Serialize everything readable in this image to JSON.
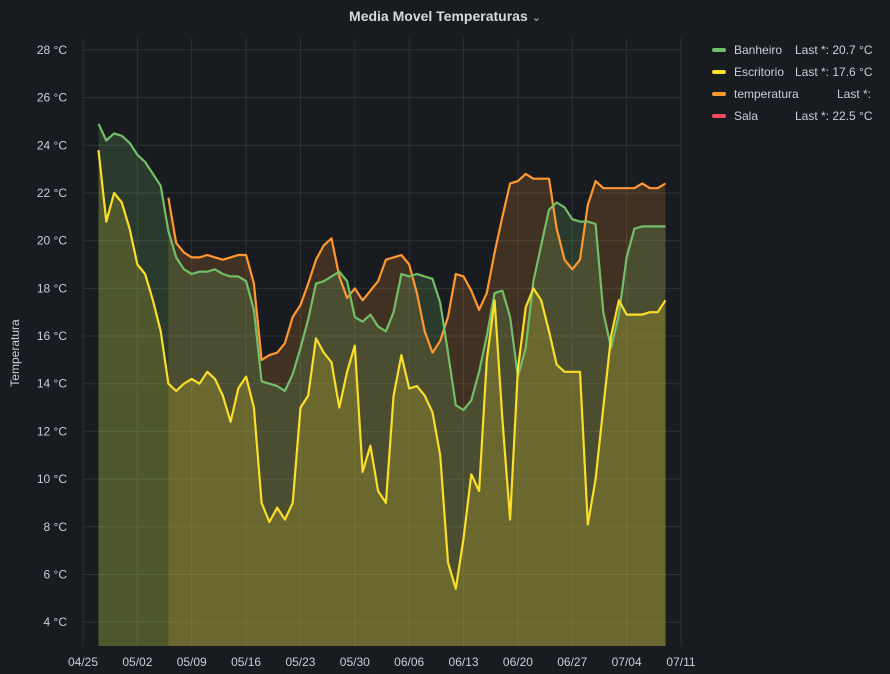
{
  "panel": {
    "title": "Media Movel Temperaturas",
    "chevron": "⌄"
  },
  "legend": [
    {
      "name": "Banheiro",
      "last": "Last *: 20.7 °C",
      "color": "#73bf69"
    },
    {
      "name": "Escritorio",
      "last": "Last *: 17.6 °C",
      "color": "#fade2a"
    },
    {
      "name": "temperatura",
      "last": "Last *:",
      "color": "#ff9830"
    },
    {
      "name": "Sala",
      "last": "Last *: 22.5 °C",
      "color": "#f2495c"
    }
  ],
  "colors": {
    "background": "#181b1f",
    "grid": "#2c3235",
    "text": "#ccccdc"
  },
  "chart_data": {
    "type": "area",
    "title": "Media Movel Temperaturas",
    "ylabel": "Temperatura",
    "xlabel": "",
    "unit": "°C",
    "ylim": [
      3,
      28.5
    ],
    "yticks": [
      4,
      6,
      8,
      10,
      12,
      14,
      16,
      18,
      20,
      22,
      24,
      26,
      28
    ],
    "ytick_labels": [
      "4 °C",
      "6 °C",
      "8 °C",
      "10 °C",
      "12 °C",
      "14 °C",
      "16 °C",
      "18 °C",
      "20 °C",
      "22 °C",
      "24 °C",
      "26 °C",
      "28 °C"
    ],
    "xlim": [
      "2023-04-25",
      "2023-07-11"
    ],
    "xtick_dates": [
      "2023-04-25",
      "2023-05-02",
      "2023-05-09",
      "2023-05-16",
      "2023-05-23",
      "2023-05-30",
      "2023-06-06",
      "2023-06-13",
      "2023-06-20",
      "2023-06-27",
      "2023-07-04",
      "2023-07-11"
    ],
    "xtick_labels": [
      "04/25",
      "05/02",
      "05/09",
      "05/16",
      "05/23",
      "05/30",
      "06/06",
      "06/13",
      "06/20",
      "06/27",
      "07/04",
      "07/11"
    ],
    "grid": true,
    "legend_position": "top-right",
    "series": [
      {
        "name": "Banheiro",
        "color": "#73bf69",
        "x": [
          "2023-04-27",
          "2023-04-28",
          "2023-04-29",
          "2023-04-30",
          "2023-05-01",
          "2023-05-02",
          "2023-05-03",
          "2023-05-04",
          "2023-05-05",
          "2023-05-06",
          "2023-05-07",
          "2023-05-08",
          "2023-05-09",
          "2023-05-10",
          "2023-05-11",
          "2023-05-12",
          "2023-05-13",
          "2023-05-14",
          "2023-05-15",
          "2023-05-16",
          "2023-05-17",
          "2023-05-18",
          "2023-05-19",
          "2023-05-20",
          "2023-05-21",
          "2023-05-22",
          "2023-05-23",
          "2023-05-24",
          "2023-05-25",
          "2023-05-26",
          "2023-05-27",
          "2023-05-28",
          "2023-05-29",
          "2023-05-30",
          "2023-05-31",
          "2023-06-01",
          "2023-06-02",
          "2023-06-03",
          "2023-06-04",
          "2023-06-05",
          "2023-06-06",
          "2023-06-07",
          "2023-06-08",
          "2023-06-09",
          "2023-06-10",
          "2023-06-11",
          "2023-06-12",
          "2023-06-13",
          "2023-06-14",
          "2023-06-15",
          "2023-06-16",
          "2023-06-17",
          "2023-06-18",
          "2023-06-19",
          "2023-06-20",
          "2023-06-21",
          "2023-06-22",
          "2023-06-23",
          "2023-06-24",
          "2023-06-25",
          "2023-06-26",
          "2023-06-27",
          "2023-06-28",
          "2023-06-29",
          "2023-06-30",
          "2023-07-01",
          "2023-07-02",
          "2023-07-03",
          "2023-07-04",
          "2023-07-05",
          "2023-07-06",
          "2023-07-07",
          "2023-07-08",
          "2023-07-09"
        ],
        "values": [
          24.9,
          24.2,
          24.5,
          24.4,
          24.1,
          23.6,
          23.3,
          22.8,
          22.3,
          20.4,
          19.3,
          18.8,
          18.6,
          18.7,
          18.7,
          18.8,
          18.6,
          18.5,
          18.5,
          18.3,
          17.1,
          14.1,
          14.0,
          13.9,
          13.7,
          14.4,
          15.5,
          16.7,
          18.2,
          18.3,
          18.5,
          18.7,
          18.3,
          16.8,
          16.6,
          16.9,
          16.4,
          16.2,
          17.0,
          18.6,
          18.5,
          18.6,
          18.5,
          18.4,
          17.4,
          15.3,
          13.1,
          12.9,
          13.3,
          14.5,
          16.0,
          17.8,
          17.9,
          16.8,
          14.3,
          15.5,
          18.3,
          19.8,
          21.3,
          21.6,
          21.4,
          20.9,
          20.8,
          20.8,
          20.7,
          17.0,
          15.5,
          16.9,
          19.3,
          20.5,
          20.6,
          20.6,
          20.6,
          20.6
        ]
      },
      {
        "name": "Escritorio",
        "color": "#fade2a",
        "x": [
          "2023-04-27",
          "2023-04-28",
          "2023-04-29",
          "2023-04-30",
          "2023-05-01",
          "2023-05-02",
          "2023-05-03",
          "2023-05-04",
          "2023-05-05",
          "2023-05-06",
          "2023-05-07",
          "2023-05-08",
          "2023-05-09",
          "2023-05-10",
          "2023-05-11",
          "2023-05-12",
          "2023-05-13",
          "2023-05-14",
          "2023-05-15",
          "2023-05-16",
          "2023-05-17",
          "2023-05-18",
          "2023-05-19",
          "2023-05-20",
          "2023-05-21",
          "2023-05-22",
          "2023-05-23",
          "2023-05-24",
          "2023-05-25",
          "2023-05-26",
          "2023-05-27",
          "2023-05-28",
          "2023-05-29",
          "2023-05-30",
          "2023-05-31",
          "2023-06-01",
          "2023-06-02",
          "2023-06-03",
          "2023-06-04",
          "2023-06-05",
          "2023-06-06",
          "2023-06-07",
          "2023-06-08",
          "2023-06-09",
          "2023-06-10",
          "2023-06-11",
          "2023-06-12",
          "2023-06-13",
          "2023-06-14",
          "2023-06-15",
          "2023-06-16",
          "2023-06-17",
          "2023-06-18",
          "2023-06-19",
          "2023-06-20",
          "2023-06-21",
          "2023-06-22",
          "2023-06-23",
          "2023-06-24",
          "2023-06-25",
          "2023-06-26",
          "2023-06-27",
          "2023-06-28",
          "2023-06-29",
          "2023-06-30",
          "2023-07-01",
          "2023-07-02",
          "2023-07-03",
          "2023-07-04",
          "2023-07-05",
          "2023-07-06",
          "2023-07-07",
          "2023-07-08",
          "2023-07-09"
        ],
        "values": [
          23.8,
          20.8,
          22.0,
          21.6,
          20.5,
          19.0,
          18.6,
          17.5,
          16.2,
          14.0,
          13.7,
          14.0,
          14.2,
          14.0,
          14.5,
          14.2,
          13.5,
          12.4,
          13.8,
          14.3,
          13.0,
          9.0,
          8.2,
          8.8,
          8.3,
          9.0,
          13.0,
          13.5,
          15.9,
          15.3,
          14.9,
          13.0,
          14.5,
          15.6,
          10.3,
          11.4,
          9.5,
          9.0,
          13.5,
          15.2,
          13.8,
          13.9,
          13.5,
          12.8,
          11.0,
          6.5,
          5.4,
          7.5,
          10.2,
          9.5,
          15.0,
          17.5,
          12.5,
          8.3,
          14.6,
          17.2,
          18.0,
          17.5,
          16.2,
          14.8,
          14.5,
          14.5,
          14.5,
          8.1,
          10.0,
          13.0,
          16.0,
          17.5,
          16.9,
          16.9,
          16.9,
          17.0,
          17.0,
          17.5
        ]
      },
      {
        "name": "temperatura",
        "color": "#ff9830",
        "x": [
          "2023-05-06",
          "2023-05-07",
          "2023-05-08",
          "2023-05-09",
          "2023-05-10",
          "2023-05-11",
          "2023-05-12",
          "2023-05-13",
          "2023-05-14",
          "2023-05-15",
          "2023-05-16",
          "2023-05-17",
          "2023-05-18",
          "2023-05-19",
          "2023-05-20",
          "2023-05-21",
          "2023-05-22",
          "2023-05-23",
          "2023-05-24",
          "2023-05-25",
          "2023-05-26",
          "2023-05-27",
          "2023-05-28",
          "2023-05-29",
          "2023-05-30",
          "2023-05-31",
          "2023-06-01",
          "2023-06-02",
          "2023-06-03",
          "2023-06-04",
          "2023-06-05",
          "2023-06-06",
          "2023-06-07",
          "2023-06-08",
          "2023-06-09",
          "2023-06-10",
          "2023-06-11",
          "2023-06-12",
          "2023-06-13",
          "2023-06-14",
          "2023-06-15",
          "2023-06-16",
          "2023-06-17",
          "2023-06-18",
          "2023-06-19",
          "2023-06-20",
          "2023-06-21",
          "2023-06-22",
          "2023-06-23",
          "2023-06-24",
          "2023-06-25",
          "2023-06-26",
          "2023-06-27",
          "2023-06-28",
          "2023-06-29",
          "2023-06-30",
          "2023-07-01",
          "2023-07-02",
          "2023-07-03",
          "2023-07-04",
          "2023-07-05",
          "2023-07-06",
          "2023-07-07",
          "2023-07-08",
          "2023-07-09"
        ],
        "values": [
          21.8,
          19.9,
          19.5,
          19.3,
          19.3,
          19.4,
          19.3,
          19.2,
          19.3,
          19.4,
          19.4,
          18.2,
          15.0,
          15.2,
          15.3,
          15.7,
          16.8,
          17.3,
          18.2,
          19.2,
          19.8,
          20.1,
          18.5,
          17.6,
          18.0,
          17.5,
          17.9,
          18.3,
          19.2,
          19.3,
          19.4,
          19.0,
          17.8,
          16.2,
          15.3,
          15.8,
          16.8,
          18.6,
          18.5,
          17.9,
          17.1,
          17.8,
          19.5,
          21.0,
          22.4,
          22.5,
          22.8,
          22.6,
          22.6,
          22.6,
          20.5,
          19.2,
          18.8,
          19.2,
          21.5,
          22.5,
          22.2,
          22.2,
          22.2,
          22.2,
          22.2,
          22.4,
          22.2,
          22.2,
          22.4
        ]
      },
      {
        "name": "Sala",
        "color": "#f2495c",
        "x": [],
        "values": []
      }
    ]
  }
}
